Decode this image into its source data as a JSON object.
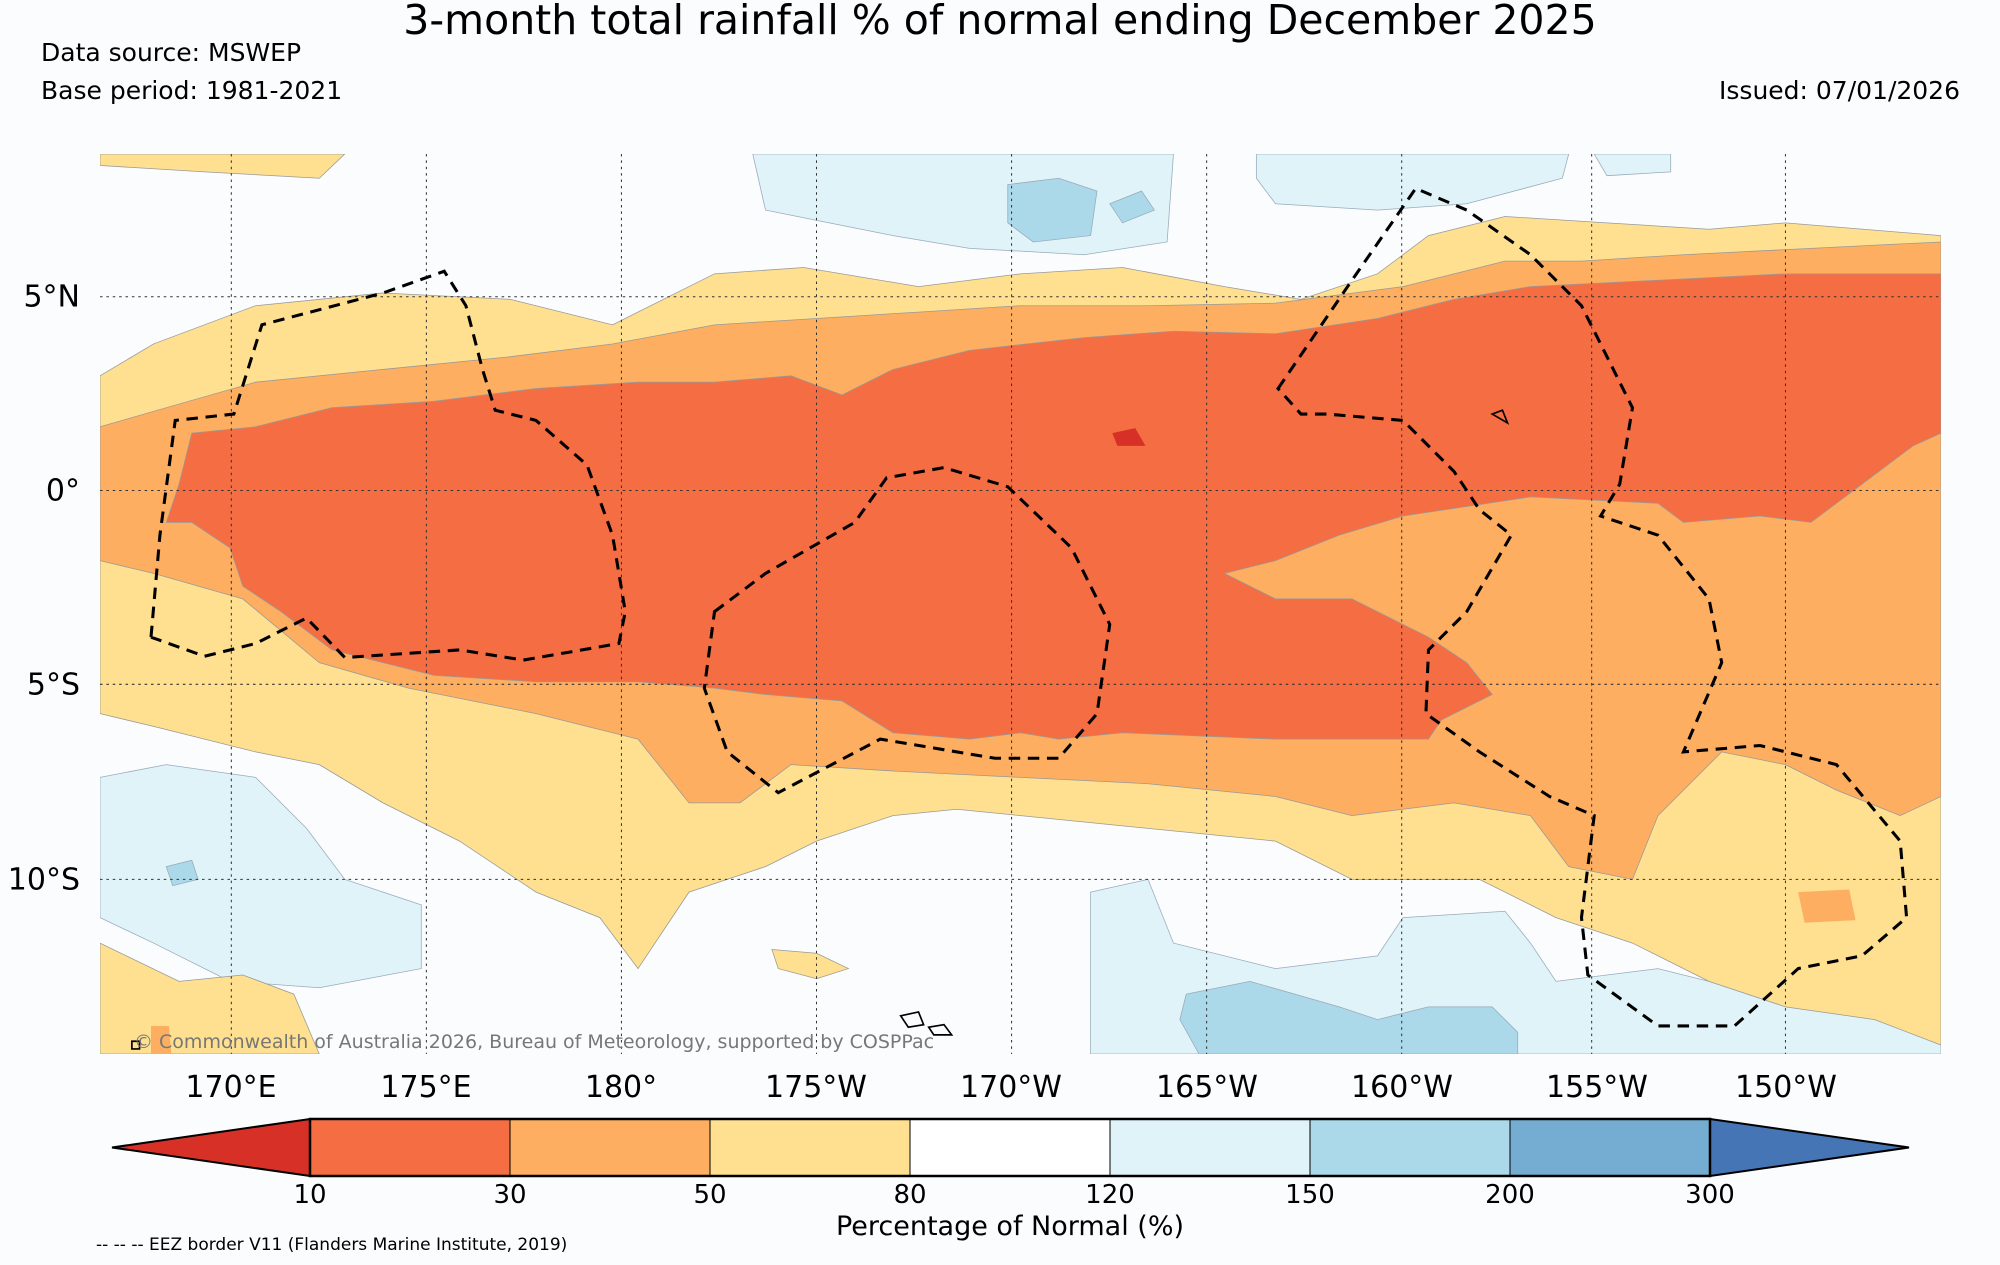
{
  "title": "3-month total rainfall % of normal ending December 2025",
  "data_source": "Data source: MSWEP",
  "base_period": "Base period: 1981-2021",
  "issued": "Issued: 07/01/2026",
  "copyright": "© Commonwealth of Australia 2026, Bureau of Meteorology, supported by COSPPac",
  "lon_labels": [
    "170°E",
    "175°E",
    "180°",
    "175°W",
    "170°W",
    "165°W",
    "160°W",
    "155°W",
    "150°W"
  ],
  "lat_labels": [
    "5°N",
    "0°",
    "5°S",
    "10°S"
  ],
  "colorbar": {
    "label": "Percentage of Normal (%)",
    "ticks": [
      "10",
      "30",
      "50",
      "80",
      "120",
      "150",
      "200",
      "300"
    ],
    "colors": [
      "#d73027",
      "#f46d43",
      "#fdae61",
      "#fee090",
      "#ffffff",
      "#e0f3f8",
      "#abd9e9",
      "#74add1",
      "#4575b4"
    ]
  },
  "eez_note": "-- -- -- EEZ border V11 (Flanders Marine Institute, 2019)"
}
